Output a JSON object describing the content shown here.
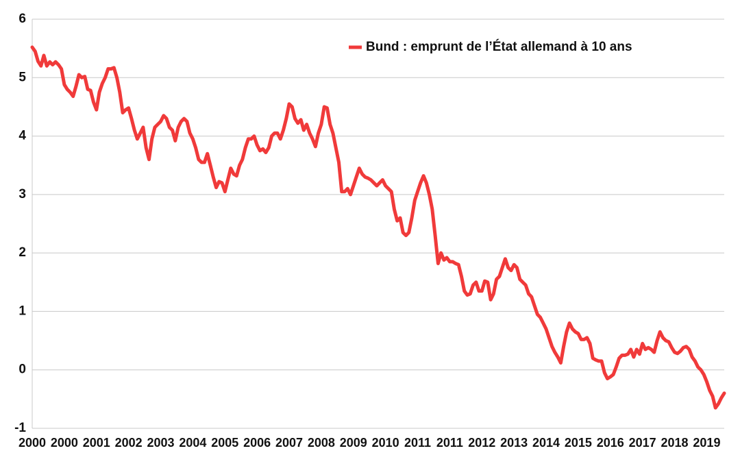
{
  "chart_data": {
    "type": "line",
    "categories": [
      "2000",
      null,
      null,
      null,
      null,
      null,
      null,
      null,
      null,
      null,
      null,
      "2000",
      null,
      null,
      null,
      null,
      null,
      null,
      null,
      null,
      null,
      null,
      "2001",
      null,
      null,
      null,
      null,
      null,
      null,
      null,
      null,
      null,
      null,
      "2002",
      null,
      null,
      null,
      null,
      null,
      null,
      null,
      null,
      null,
      null,
      "2003",
      null,
      null,
      null,
      null,
      null,
      null,
      null,
      null,
      null,
      null,
      "2004",
      null,
      null,
      null,
      null,
      null,
      null,
      null,
      null,
      null,
      null,
      "2005",
      null,
      null,
      null,
      null,
      null,
      null,
      null,
      null,
      null,
      null,
      "2006",
      null,
      null,
      null,
      null,
      null,
      null,
      null,
      null,
      null,
      null,
      "2007",
      null,
      null,
      null,
      null,
      null,
      null,
      null,
      null,
      null,
      null,
      "2008",
      null,
      null,
      null,
      null,
      null,
      null,
      null,
      null,
      null,
      null,
      "2009",
      null,
      null,
      null,
      null,
      null,
      null,
      null,
      null,
      null,
      null,
      "2010",
      null,
      null,
      null,
      null,
      null,
      null,
      null,
      null,
      null,
      null,
      "2011",
      null,
      null,
      null,
      null,
      null,
      null,
      null,
      null,
      null,
      null,
      "2011",
      null,
      null,
      null,
      null,
      null,
      null,
      null,
      null,
      null,
      null,
      "2012",
      null,
      null,
      null,
      null,
      null,
      null,
      null,
      null,
      null,
      null,
      "2013",
      null,
      null,
      null,
      null,
      null,
      null,
      null,
      null,
      null,
      null,
      "2014",
      null,
      null,
      null,
      null,
      null,
      null,
      null,
      null,
      null,
      null,
      "2015",
      null,
      null,
      null,
      null,
      null,
      null,
      null,
      null,
      null,
      null,
      "2016",
      null,
      null,
      null,
      null,
      null,
      null,
      null,
      null,
      null,
      null,
      "2017",
      null,
      null,
      null,
      null,
      null,
      null,
      null,
      null,
      null,
      null,
      "2018",
      null,
      null,
      null,
      null,
      null,
      null,
      null,
      null,
      null,
      null,
      "2019",
      null,
      null,
      null,
      null,
      null,
      null
    ],
    "series": [
      {
        "name": "Bund : emprunt de l’État allemand à 10 ans",
        "color": "#f03a3a",
        "values": [
          5.52,
          5.45,
          5.28,
          5.2,
          5.38,
          5.2,
          5.27,
          5.22,
          5.27,
          5.22,
          5.15,
          4.88,
          4.8,
          4.75,
          4.68,
          4.85,
          5.05,
          5.0,
          5.02,
          4.8,
          4.78,
          4.58,
          4.45,
          4.75,
          4.9,
          5.0,
          5.15,
          5.15,
          5.17,
          5.0,
          4.75,
          4.4,
          4.45,
          4.48,
          4.3,
          4.1,
          3.95,
          4.05,
          4.15,
          3.8,
          3.6,
          3.95,
          4.15,
          4.2,
          4.25,
          4.35,
          4.3,
          4.15,
          4.1,
          3.92,
          4.15,
          4.25,
          4.3,
          4.25,
          4.05,
          3.95,
          3.8,
          3.6,
          3.55,
          3.55,
          3.7,
          3.5,
          3.3,
          3.12,
          3.22,
          3.2,
          3.05,
          3.25,
          3.45,
          3.35,
          3.32,
          3.5,
          3.6,
          3.8,
          3.95,
          3.95,
          4.0,
          3.85,
          3.75,
          3.78,
          3.72,
          3.8,
          4.0,
          4.05,
          4.05,
          3.95,
          4.1,
          4.3,
          4.55,
          4.5,
          4.3,
          4.22,
          4.28,
          4.1,
          4.2,
          4.05,
          3.95,
          3.82,
          4.05,
          4.2,
          4.5,
          4.48,
          4.2,
          4.05,
          3.8,
          3.55,
          3.05,
          3.05,
          3.1,
          3.0,
          3.15,
          3.3,
          3.45,
          3.35,
          3.3,
          3.28,
          3.25,
          3.2,
          3.15,
          3.2,
          3.25,
          3.15,
          3.1,
          3.05,
          2.75,
          2.55,
          2.6,
          2.35,
          2.3,
          2.35,
          2.6,
          2.9,
          3.05,
          3.2,
          3.32,
          3.2,
          3.0,
          2.75,
          2.3,
          1.82,
          2.0,
          1.88,
          1.92,
          1.85,
          1.85,
          1.82,
          1.8,
          1.6,
          1.35,
          1.28,
          1.3,
          1.45,
          1.5,
          1.35,
          1.35,
          1.52,
          1.5,
          1.2,
          1.3,
          1.55,
          1.6,
          1.75,
          1.9,
          1.75,
          1.7,
          1.8,
          1.75,
          1.55,
          1.5,
          1.45,
          1.3,
          1.25,
          1.1,
          0.95,
          0.9,
          0.8,
          0.7,
          0.55,
          0.4,
          0.3,
          0.22,
          0.12,
          0.4,
          0.65,
          0.8,
          0.7,
          0.65,
          0.62,
          0.52,
          0.52,
          0.55,
          0.45,
          0.2,
          0.17,
          0.15,
          0.15,
          -0.05,
          -0.15,
          -0.12,
          -0.08,
          0.05,
          0.2,
          0.25,
          0.25,
          0.27,
          0.35,
          0.22,
          0.35,
          0.27,
          0.45,
          0.35,
          0.38,
          0.35,
          0.3,
          0.5,
          0.65,
          0.55,
          0.5,
          0.48,
          0.38,
          0.3,
          0.28,
          0.32,
          0.38,
          0.4,
          0.35,
          0.22,
          0.15,
          0.05,
          0.0,
          -0.08,
          -0.2,
          -0.35,
          -0.45,
          -0.65,
          -0.58,
          -0.48,
          -0.4
        ]
      }
    ],
    "ylim": [
      -1,
      6
    ],
    "yticks": [
      -1,
      0,
      1,
      2,
      3,
      4,
      5,
      6
    ],
    "grid": true,
    "legend": "top"
  }
}
